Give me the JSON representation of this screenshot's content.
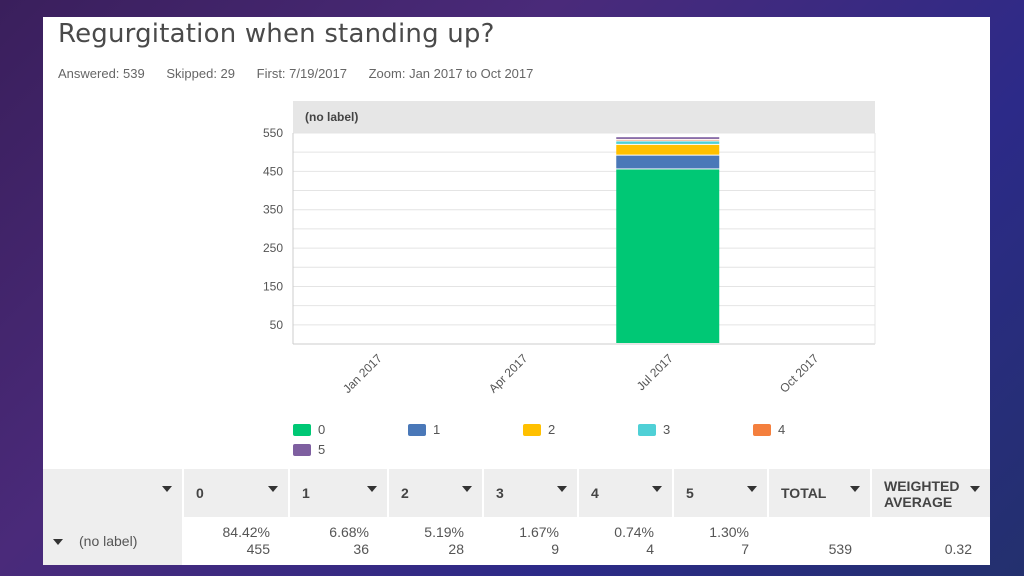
{
  "title": "Regurgitation when standing up?",
  "meta": {
    "answered": "Answered: 539",
    "skipped": "Skipped: 29",
    "first": "First: 7/19/2017",
    "zoom": "Zoom: Jan 2017 to Oct 2017"
  },
  "chart_data": {
    "type": "bar",
    "stacked": true,
    "header": "(no label)",
    "categories": [
      "Jan 2017",
      "Apr 2017",
      "Jul 2017",
      "Oct 2017"
    ],
    "series": [
      {
        "name": "0",
        "color": "#00c875",
        "values": [
          0,
          0,
          455,
          0
        ]
      },
      {
        "name": "1",
        "color": "#4a78b8",
        "values": [
          0,
          0,
          36,
          0
        ]
      },
      {
        "name": "2",
        "color": "#ffc000",
        "values": [
          0,
          0,
          28,
          0
        ]
      },
      {
        "name": "3",
        "color": "#4fd0d6",
        "values": [
          0,
          0,
          9,
          0
        ]
      },
      {
        "name": "4",
        "color": "#f47f3e",
        "values": [
          0,
          0,
          4,
          0
        ]
      },
      {
        "name": "5",
        "color": "#7e5fa0",
        "values": [
          0,
          0,
          7,
          0
        ]
      }
    ],
    "yticks": [
      550,
      450,
      350,
      250,
      150,
      50
    ],
    "ylim": [
      0,
      550
    ],
    "grid": true,
    "legend": "bottom"
  },
  "table": {
    "headers": [
      "0",
      "1",
      "2",
      "3",
      "4",
      "5",
      "TOTAL",
      "WEIGHTED AVERAGE"
    ],
    "row": {
      "label": "(no label)",
      "cells": [
        {
          "pct": "84.42%",
          "count": "455"
        },
        {
          "pct": "6.68%",
          "count": "36"
        },
        {
          "pct": "5.19%",
          "count": "28"
        },
        {
          "pct": "1.67%",
          "count": "9"
        },
        {
          "pct": "0.74%",
          "count": "4"
        },
        {
          "pct": "1.30%",
          "count": "7"
        }
      ],
      "total": "539",
      "weighted_average": "0.32"
    }
  }
}
